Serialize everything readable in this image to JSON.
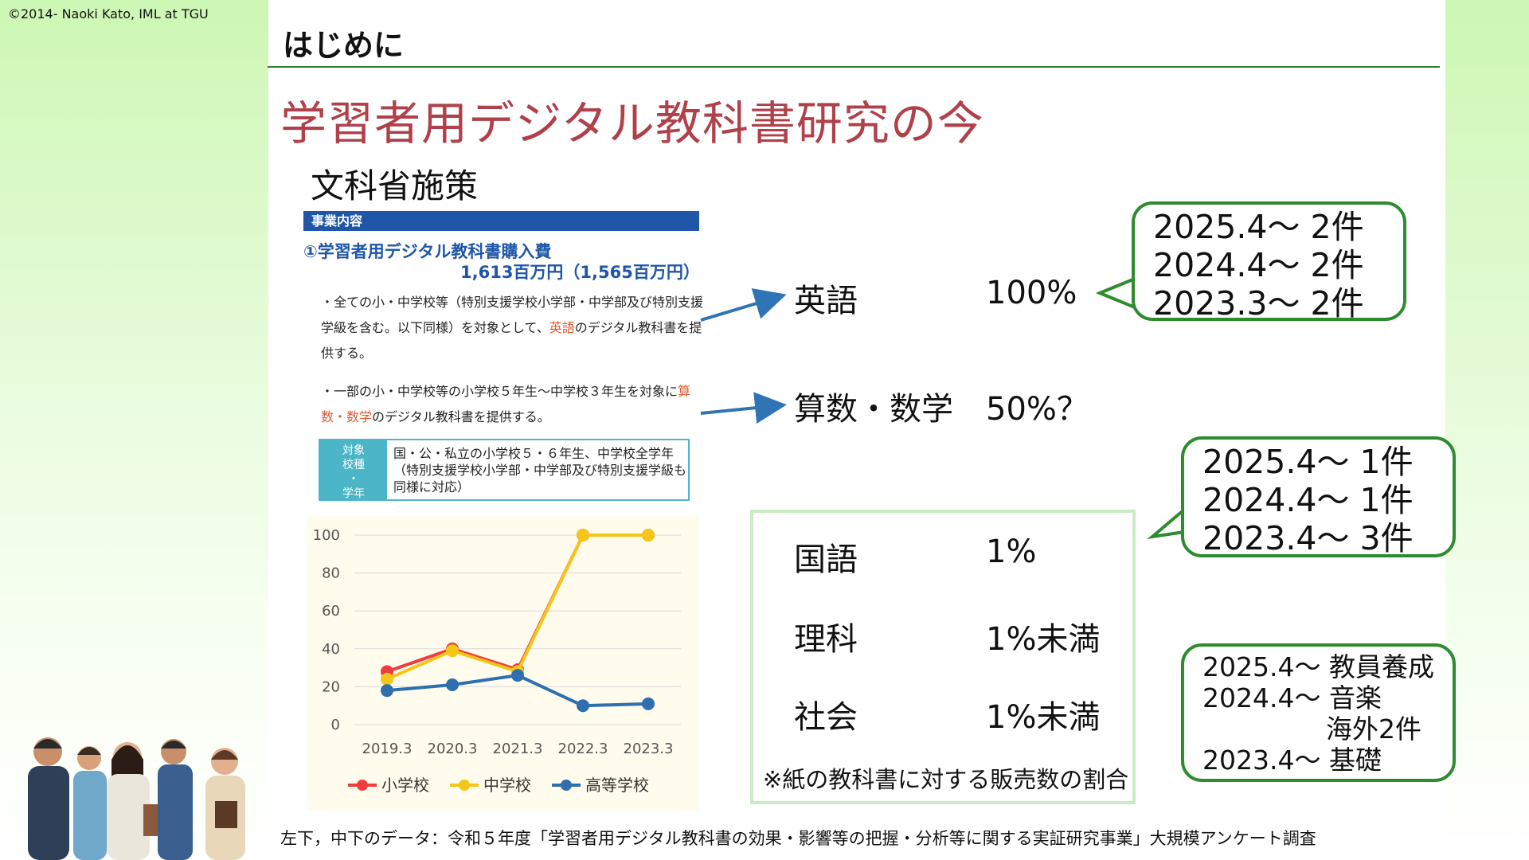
{
  "copyright": "©2014- Naoki Kato, IML at TGU",
  "header": {
    "title": "はじめに"
  },
  "main_title": "学習者用デジタル教科書研究の今",
  "section_title": "文科省施策",
  "doc": {
    "header": "事業内容",
    "budget_title": "①学習者用デジタル教科書購入費",
    "budget_amount": "1,613百万円（1,565百万円）",
    "bullet1": {
      "pre": "・全ての小・中学校等（特別支援学校小学部・中学部及び特別支援学級を含む。以下同様）を対象として、",
      "accent": "英語",
      "post": "のデジタル教科書を提供する。"
    },
    "bullet2": {
      "pre": "・一部の小・中学校等の小学校５年生～中学校３年生を対象に",
      "accent": "算数・数学",
      "post": "のデジタル教科書を提供する。"
    },
    "target_label": {
      "l1": "対象",
      "l2": "校種",
      "l3": "・",
      "l4": "学年"
    },
    "target_text": "国・公・私立の小学校５・６年生、中学校全学年（特別支援学校小学部・中学部及び特別支援学級も同様に対応）"
  },
  "chart_data": {
    "type": "line",
    "categories": [
      "2019.3",
      "2020.3",
      "2021.3",
      "2022.3",
      "2023.3"
    ],
    "ylim": [
      0,
      100
    ],
    "yticks": [
      0,
      20,
      40,
      60,
      80,
      100
    ],
    "grid": true,
    "legend": "bottom",
    "series": [
      {
        "name": "小学校",
        "color": "#ee3d3d",
        "values": [
          28,
          40,
          29,
          100,
          100
        ]
      },
      {
        "name": "中学校",
        "color": "#f5c518",
        "values": [
          24,
          39,
          28,
          100,
          100
        ]
      },
      {
        "name": "高等学校",
        "color": "#2f6fb0",
        "values": [
          18,
          21,
          26,
          10,
          11
        ]
      }
    ]
  },
  "subjects": {
    "english": {
      "name": "英語",
      "value": "100%"
    },
    "math": {
      "name": "算数・数学",
      "value": "50%？"
    },
    "japanese": {
      "name": "国語",
      "value": "1%"
    },
    "science": {
      "name": "理科",
      "value": "1%未満"
    },
    "social": {
      "name": "社会",
      "value": "1%未満"
    }
  },
  "note": "※紙の教科書に対する販売数の割合",
  "bubbles": {
    "english": [
      "2025.4～ 2件",
      "2024.4～ 2件",
      "2023.3～ 2件"
    ],
    "math": [
      "2025.4～ 1件",
      "2024.4～ 1件",
      "2023.4～ 3件"
    ],
    "other": [
      "2025.4～ 教員養成",
      "2024.4～ 音楽",
      "海外2件",
      "2023.4～ 基礎"
    ]
  },
  "footer": "左下，中下のデータ：令和５年度「学習者用デジタル教科書の効果・影響等の把握・分析等に関する実証研究事業」大規模アンケート調査",
  "colors": {
    "title": "#b0404a",
    "accent": "#e0592e",
    "doc_blue": "#1f56a8",
    "bubble_border": "#2e8b2e",
    "rule": "#2e7d32"
  }
}
